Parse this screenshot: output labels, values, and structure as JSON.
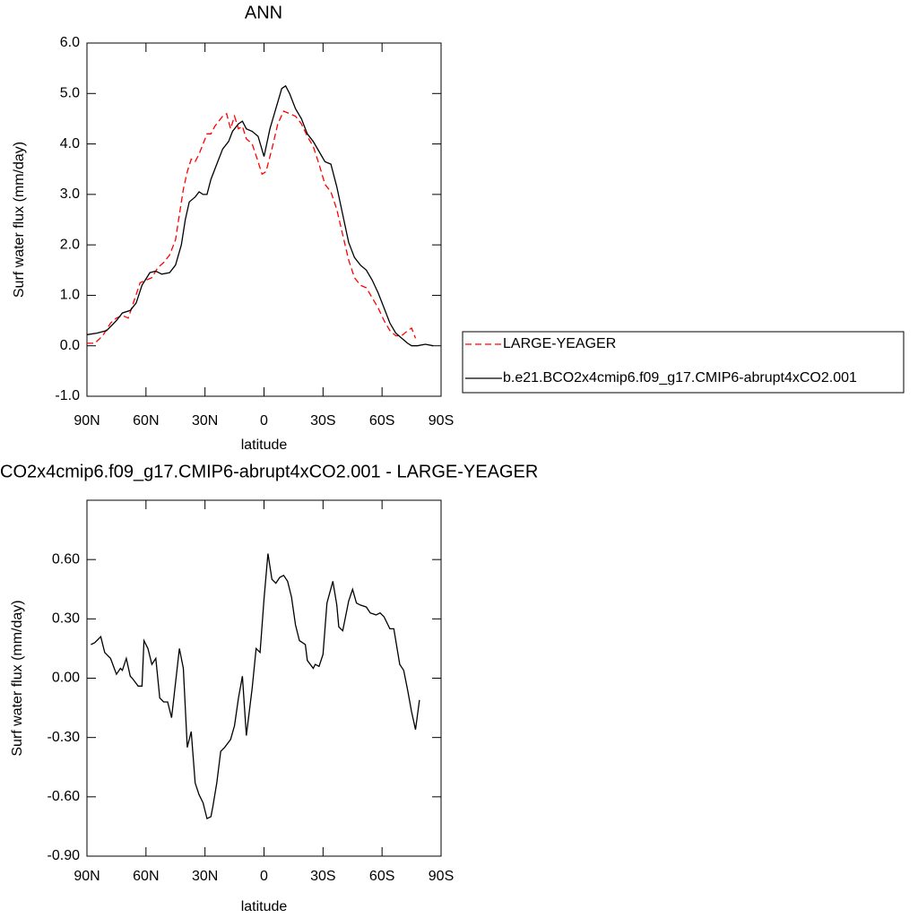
{
  "chart_data": [
    {
      "type": "line",
      "title": "ANN",
      "xlabel": "latitude",
      "ylabel": "Surf water flux (mm/day)",
      "xlim": [
        90,
        -90
      ],
      "xticks": [
        {
          "value": 90,
          "label": "90N"
        },
        {
          "value": 60,
          "label": "60N"
        },
        {
          "value": 30,
          "label": "30N"
        },
        0,
        {
          "value": -30,
          "label": "30S"
        },
        {
          "value": -60,
          "label": "60S"
        },
        {
          "value": -90,
          "label": "90S"
        }
      ],
      "ylim": [
        -1,
        6
      ],
      "yticks": [
        {
          "value": -1,
          "label": "-1.0"
        },
        {
          "value": 0,
          "label": "0.0"
        },
        {
          "value": 1,
          "label": "1.0"
        },
        {
          "value": 2,
          "label": "2.0"
        },
        {
          "value": 3,
          "label": "3.0"
        },
        {
          "value": 4,
          "label": "4.0"
        },
        {
          "value": 5,
          "label": "5.0"
        },
        {
          "value": 6,
          "label": "6.0"
        }
      ],
      "legend": "right",
      "series": [
        {
          "name": "LARGE-YEAGER",
          "color": "#ff0000",
          "style": "dashed",
          "x": [
            90,
            86,
            82,
            78,
            75,
            72,
            69,
            66,
            63,
            60,
            57,
            54,
            51,
            48,
            45,
            43,
            41,
            39,
            37,
            35,
            33,
            31,
            29,
            27,
            25,
            23,
            21,
            19,
            17,
            15,
            13,
            11,
            9,
            6,
            3,
            1,
            -1,
            -4,
            -7,
            -10,
            -13,
            -16,
            -19,
            -22,
            -25,
            -28,
            -31,
            -34,
            -37,
            -40,
            -43,
            -46,
            -49,
            -52,
            -55,
            -58,
            -61,
            -64,
            -67,
            -70,
            -73,
            -75,
            -77
          ],
          "values": [
            0.05,
            0.05,
            0.2,
            0.45,
            0.55,
            0.6,
            0.55,
            0.9,
            1.25,
            1.3,
            1.35,
            1.55,
            1.65,
            1.8,
            2.1,
            2.6,
            3.1,
            3.45,
            3.7,
            3.65,
            3.8,
            4.0,
            4.2,
            4.2,
            4.35,
            4.45,
            4.55,
            4.6,
            4.3,
            4.55,
            4.3,
            4.35,
            4.1,
            4.0,
            3.65,
            3.4,
            3.45,
            3.9,
            4.4,
            4.65,
            4.6,
            4.55,
            4.4,
            4.15,
            3.95,
            3.6,
            3.2,
            3.05,
            2.7,
            2.2,
            1.7,
            1.35,
            1.2,
            1.15,
            0.95,
            0.75,
            0.5,
            0.3,
            0.2,
            0.2,
            0.3,
            0.35,
            0.15
          ]
        },
        {
          "name": "b.e21.BCO2x4cmip6.f09_g17.CMIP6-abrupt4xCO2.001",
          "color": "#000000",
          "style": "solid",
          "x": [
            90,
            85,
            80,
            75,
            72,
            68,
            65,
            62,
            58,
            55,
            52,
            48,
            45,
            42,
            40,
            38,
            35,
            33,
            31,
            29,
            27,
            24,
            21,
            18,
            16,
            13,
            11,
            9,
            6,
            3,
            0,
            -3,
            -6,
            -9,
            -11,
            -13,
            -16,
            -19,
            -22,
            -25,
            -28,
            -31,
            -34,
            -37,
            -40,
            -43,
            -46,
            -49,
            -52,
            -55,
            -58,
            -61,
            -64,
            -67,
            -70,
            -73,
            -75,
            -78,
            -82,
            -86
          ],
          "values": [
            0.22,
            0.25,
            0.3,
            0.5,
            0.65,
            0.7,
            0.85,
            1.2,
            1.45,
            1.48,
            1.42,
            1.45,
            1.6,
            2.0,
            2.5,
            2.85,
            2.95,
            3.05,
            3.0,
            3.0,
            3.3,
            3.6,
            3.9,
            4.05,
            4.25,
            4.4,
            4.45,
            4.3,
            4.25,
            4.15,
            3.75,
            4.3,
            4.7,
            5.1,
            5.15,
            5.0,
            4.7,
            4.5,
            4.2,
            4.05,
            3.85,
            3.65,
            3.6,
            3.15,
            2.6,
            2.05,
            1.75,
            1.6,
            1.5,
            1.3,
            1.05,
            0.75,
            0.45,
            0.25,
            0.15,
            0.05,
            0.0,
            0.0,
            0.03,
            0.0
          ]
        }
      ]
    },
    {
      "type": "line",
      "title": "CO2x4cmip6.f09_g17.CMIP6-abrupt4xCO2.001 - LARGE-YEAGER",
      "xlabel": "latitude",
      "ylabel": "Surf water flux (mm/day)",
      "xlim": [
        90,
        -90
      ],
      "xticks": [
        {
          "value": 90,
          "label": "90N"
        },
        {
          "value": 60,
          "label": "60N"
        },
        {
          "value": 30,
          "label": "30N"
        },
        0,
        {
          "value": -30,
          "label": "30S"
        },
        {
          "value": -60,
          "label": "60S"
        },
        {
          "value": -90,
          "label": "90S"
        }
      ],
      "ylim": [
        -0.9,
        0.9
      ],
      "yticks": [
        {
          "value": -0.9,
          "label": "-0.90"
        },
        {
          "value": -0.6,
          "label": "-0.60"
        },
        {
          "value": -0.3,
          "label": "-0.30"
        },
        {
          "value": 0,
          "label": "0.00"
        },
        {
          "value": 0.3,
          "label": "0.30"
        },
        {
          "value": 0.6,
          "label": "0.60"
        }
      ],
      "series": [
        {
          "color": "#000000",
          "style": "solid",
          "x": [
            88,
            86,
            83,
            81,
            78,
            75,
            73,
            72,
            70,
            68,
            67,
            64,
            62,
            61,
            59,
            57,
            55,
            53,
            51,
            49,
            47,
            43,
            41,
            39,
            37,
            35,
            33,
            31,
            29,
            27,
            26,
            24,
            22,
            20,
            17,
            15,
            13,
            11,
            9,
            6,
            4,
            2,
            0,
            -2,
            -4,
            -6,
            -8,
            -10,
            -12,
            -14,
            -16,
            -18,
            -21,
            -22,
            -25,
            -26,
            -28,
            -30,
            -32,
            -35,
            -37,
            -38,
            -40,
            -43,
            -45,
            -47,
            -49,
            -52,
            -54,
            -57,
            -59,
            -61,
            -64,
            -66,
            -69,
            -71,
            -73,
            -75,
            -77,
            -79
          ],
          "values": [
            0.17,
            0.18,
            0.21,
            0.13,
            0.1,
            0.02,
            0.05,
            0.04,
            0.1,
            0.01,
            0.0,
            -0.04,
            -0.04,
            0.19,
            0.15,
            0.07,
            0.1,
            -0.1,
            -0.12,
            -0.12,
            -0.2,
            0.15,
            0.05,
            -0.35,
            -0.27,
            -0.53,
            -0.59,
            -0.63,
            -0.71,
            -0.7,
            -0.65,
            -0.53,
            -0.37,
            -0.35,
            -0.31,
            -0.24,
            -0.1,
            0.01,
            -0.29,
            -0.05,
            0.15,
            0.13,
            0.4,
            0.63,
            0.5,
            0.48,
            0.51,
            0.52,
            0.49,
            0.41,
            0.27,
            0.19,
            0.17,
            0.09,
            0.05,
            0.07,
            0.06,
            0.12,
            0.38,
            0.49,
            0.37,
            0.26,
            0.24,
            0.39,
            0.45,
            0.38,
            0.37,
            0.36,
            0.33,
            0.32,
            0.33,
            0.31,
            0.25,
            0.25,
            0.07,
            0.04,
            -0.06,
            -0.17,
            -0.26,
            -0.11
          ]
        }
      ]
    }
  ]
}
